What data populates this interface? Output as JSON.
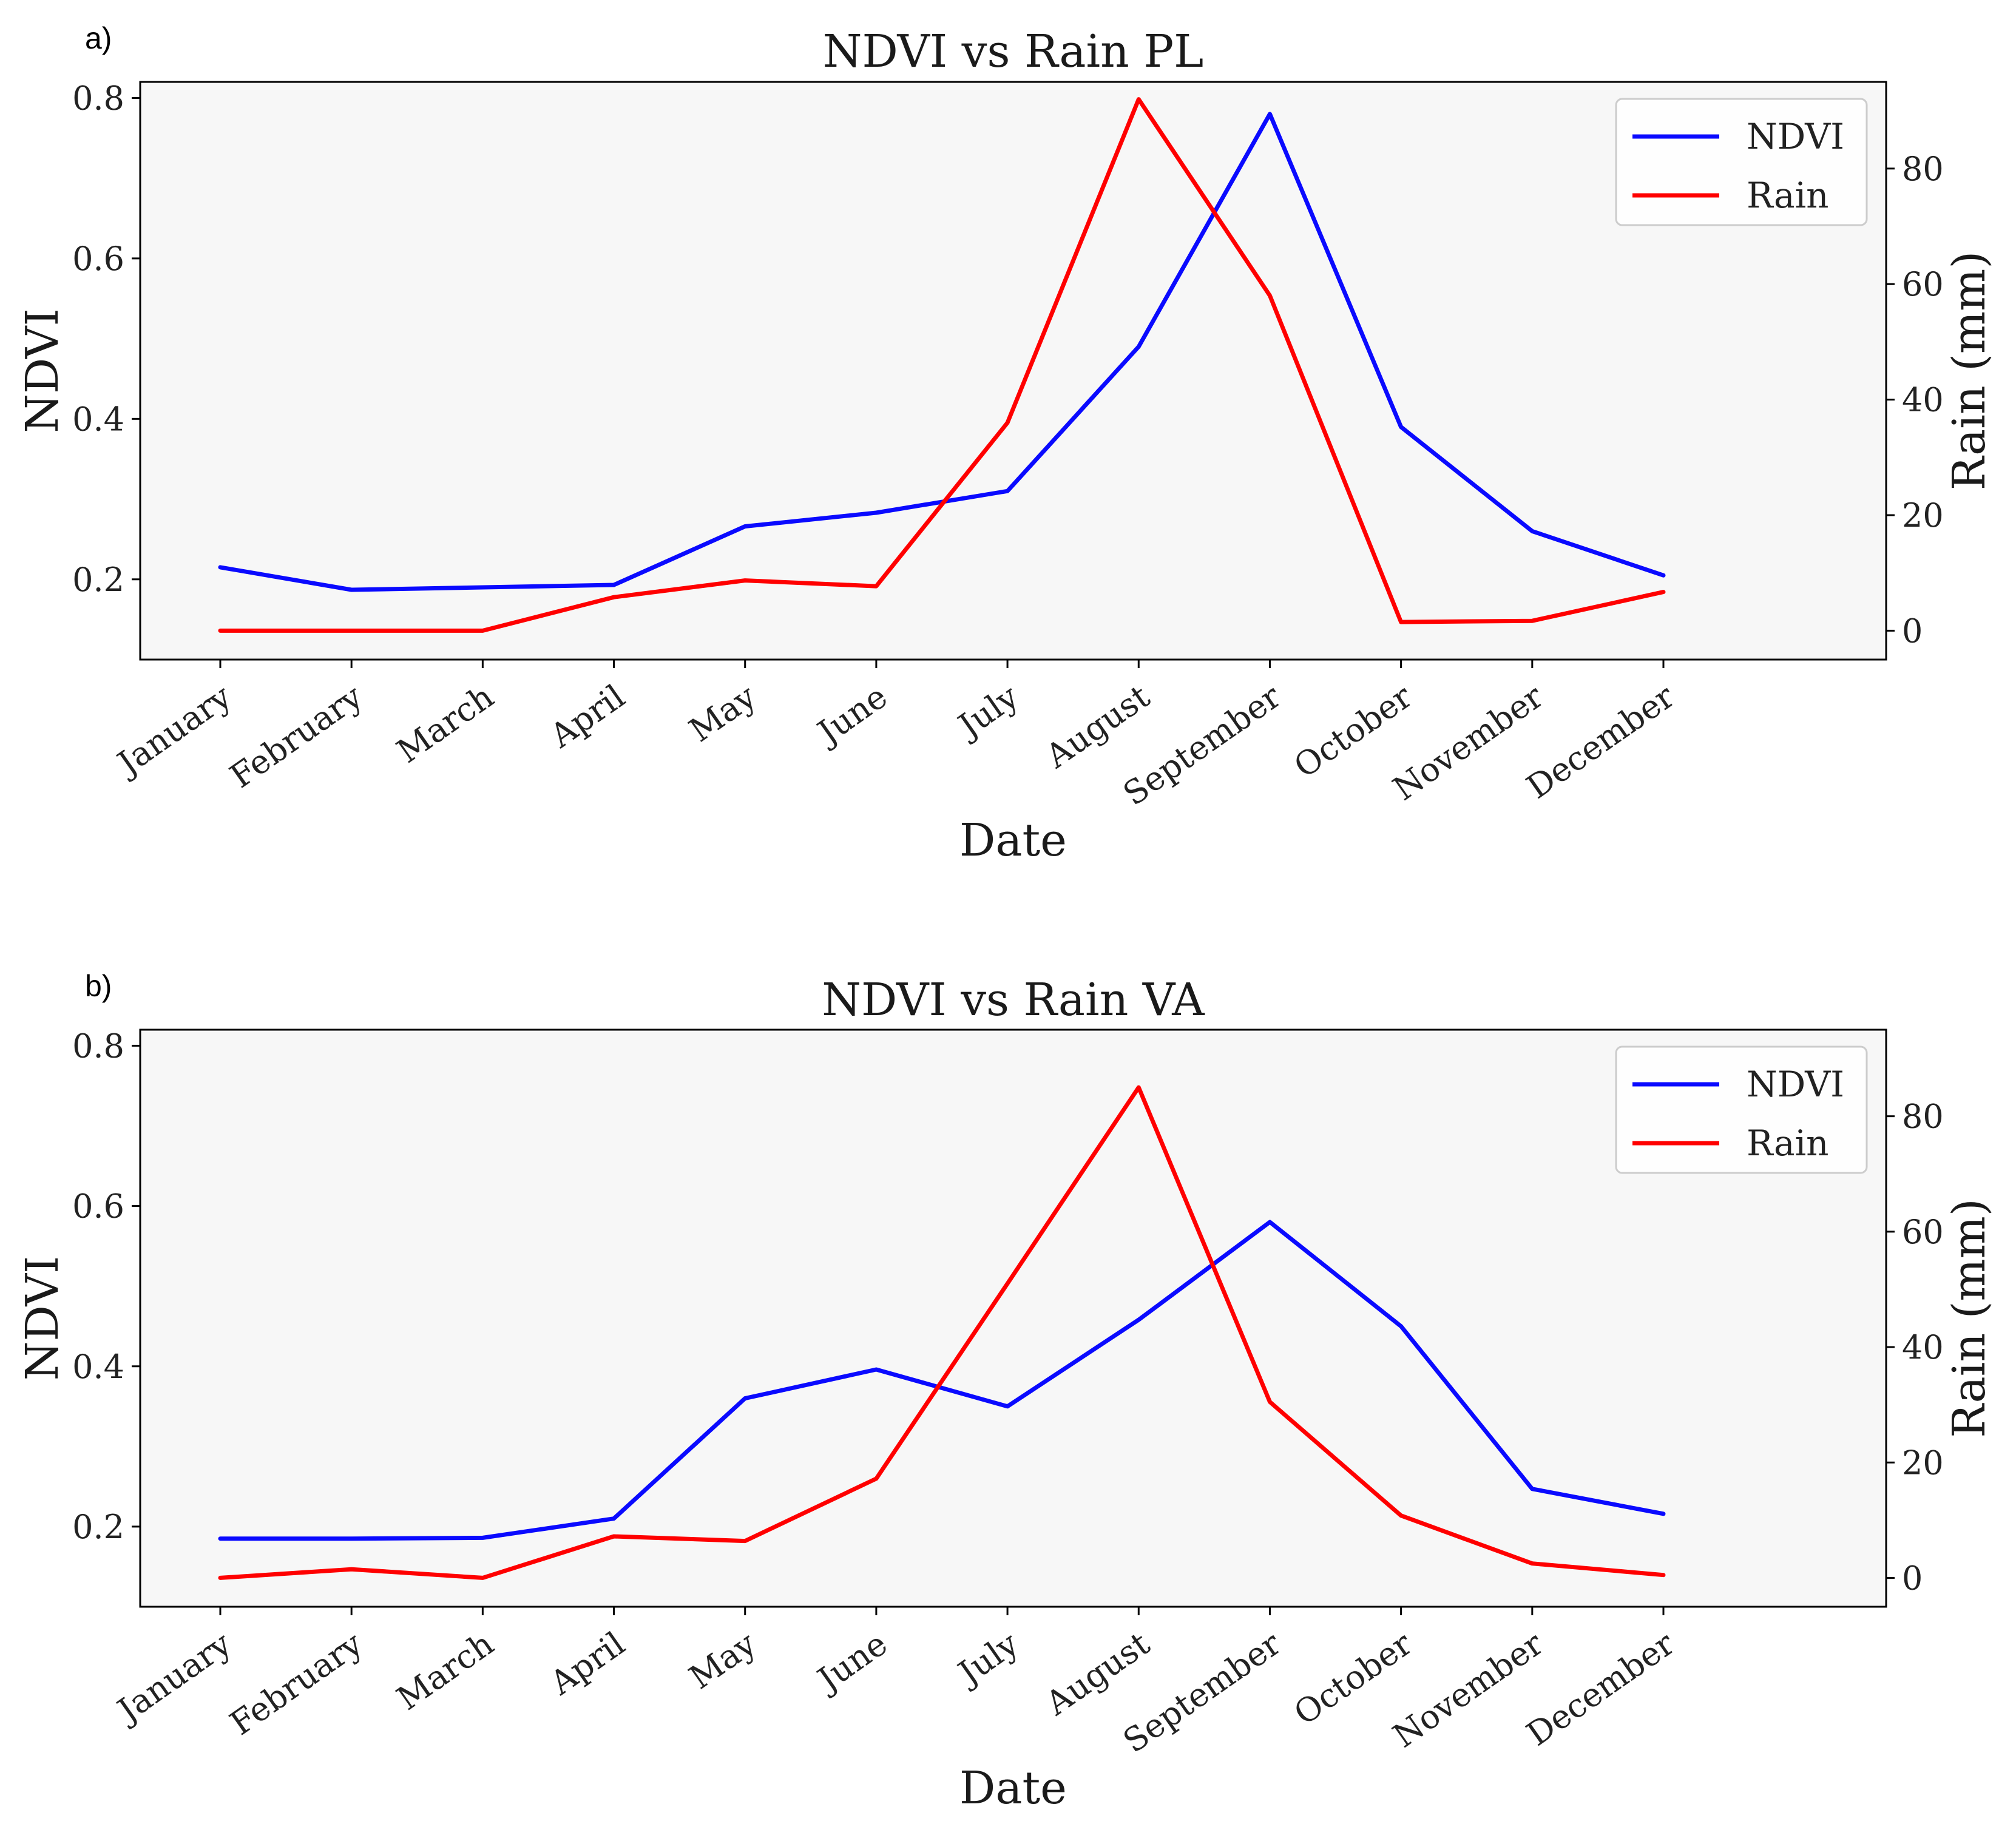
{
  "colors": {
    "ndvi": "#0a0aff",
    "rain": "#ff0000",
    "axes_background": "#f7f7f7",
    "legend_border": "#cccccc"
  },
  "chart_data": [
    {
      "panel_label": "a)",
      "type": "line",
      "title": "NDVI vs Rain PL",
      "xlabel": "Date",
      "ylabel": "NDVI",
      "y2label": "Rain (mm)",
      "categories": [
        "January",
        "February",
        "March",
        "April",
        "May",
        "June",
        "July",
        "August",
        "September",
        "October",
        "November",
        "December"
      ],
      "ylim": [
        0.1,
        0.82
      ],
      "y2lim": [
        -5,
        95
      ],
      "yticks": [
        "0.2",
        "0.4",
        "0.6",
        "0.8"
      ],
      "y2ticks": [
        "0",
        "20",
        "40",
        "60",
        "80"
      ],
      "legend_position": "upper right",
      "series": [
        {
          "name": "NDVI",
          "axis": "left",
          "values": [
            0.215,
            0.187,
            0.19,
            0.193,
            0.266,
            0.283,
            0.31,
            0.49,
            0.78,
            0.39,
            0.26,
            0.205
          ]
        },
        {
          "name": "Rain",
          "axis": "right",
          "values": [
            0,
            0,
            0,
            5.8,
            8.7,
            7.7,
            36,
            92,
            58,
            1.5,
            1.7,
            6.7
          ]
        }
      ]
    },
    {
      "panel_label": "b)",
      "type": "line",
      "title": "NDVI vs Rain VA",
      "xlabel": "Date",
      "ylabel": "NDVI",
      "y2label": "Rain (mm)",
      "categories": [
        "January",
        "February",
        "March",
        "April",
        "May",
        "June",
        "July",
        "August",
        "September",
        "October",
        "November",
        "December"
      ],
      "ylim": [
        0.1,
        0.82
      ],
      "y2lim": [
        -5,
        95
      ],
      "yticks": [
        "0.2",
        "0.4",
        "0.6",
        "0.8"
      ],
      "y2ticks": [
        "0",
        "20",
        "40",
        "60",
        "80"
      ],
      "legend_position": "upper right",
      "series": [
        {
          "name": "NDVI",
          "axis": "left",
          "values": [
            0.185,
            0.185,
            0.186,
            0.21,
            0.36,
            0.396,
            0.35,
            0.458,
            0.58,
            0.45,
            0.247,
            0.216
          ]
        },
        {
          "name": "Rain",
          "axis": "right",
          "values": [
            0,
            1.5,
            0,
            7.2,
            6.4,
            17.2,
            51,
            85,
            30.5,
            10.8,
            2.5,
            0.5
          ]
        }
      ]
    }
  ]
}
